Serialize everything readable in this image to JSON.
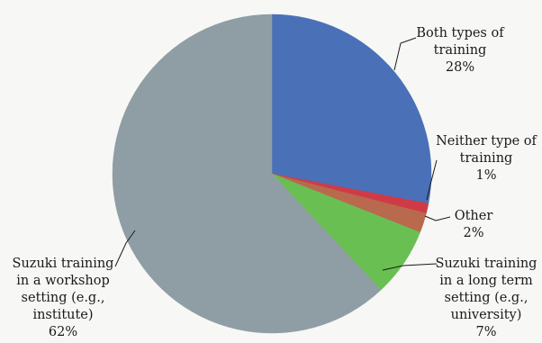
{
  "chart_data": {
    "type": "pie",
    "start_angle_deg": 0,
    "direction": "clockwise",
    "slices": [
      {
        "label_lines": [
          "Both types of",
          "training",
          "28%"
        ],
        "value": 28,
        "color": "#4a70b8"
      },
      {
        "label_lines": [
          "Neither type of",
          "training",
          "1%"
        ],
        "value": 1,
        "color": "#d03a45"
      },
      {
        "label_lines": [
          "Other",
          "2%"
        ],
        "value": 2,
        "color": "#b8694e"
      },
      {
        "label_lines": [
          "Suzuki training",
          "in a long term",
          "setting (e.g.,",
          "university)",
          "7%"
        ],
        "value": 7,
        "color": "#6abf52"
      },
      {
        "label_lines": [
          "Suzuki training",
          "in a workshop",
          "setting (e.g.,",
          "institute)",
          "62%"
        ],
        "value": 62,
        "color": "#8f9ea4"
      }
    ]
  }
}
